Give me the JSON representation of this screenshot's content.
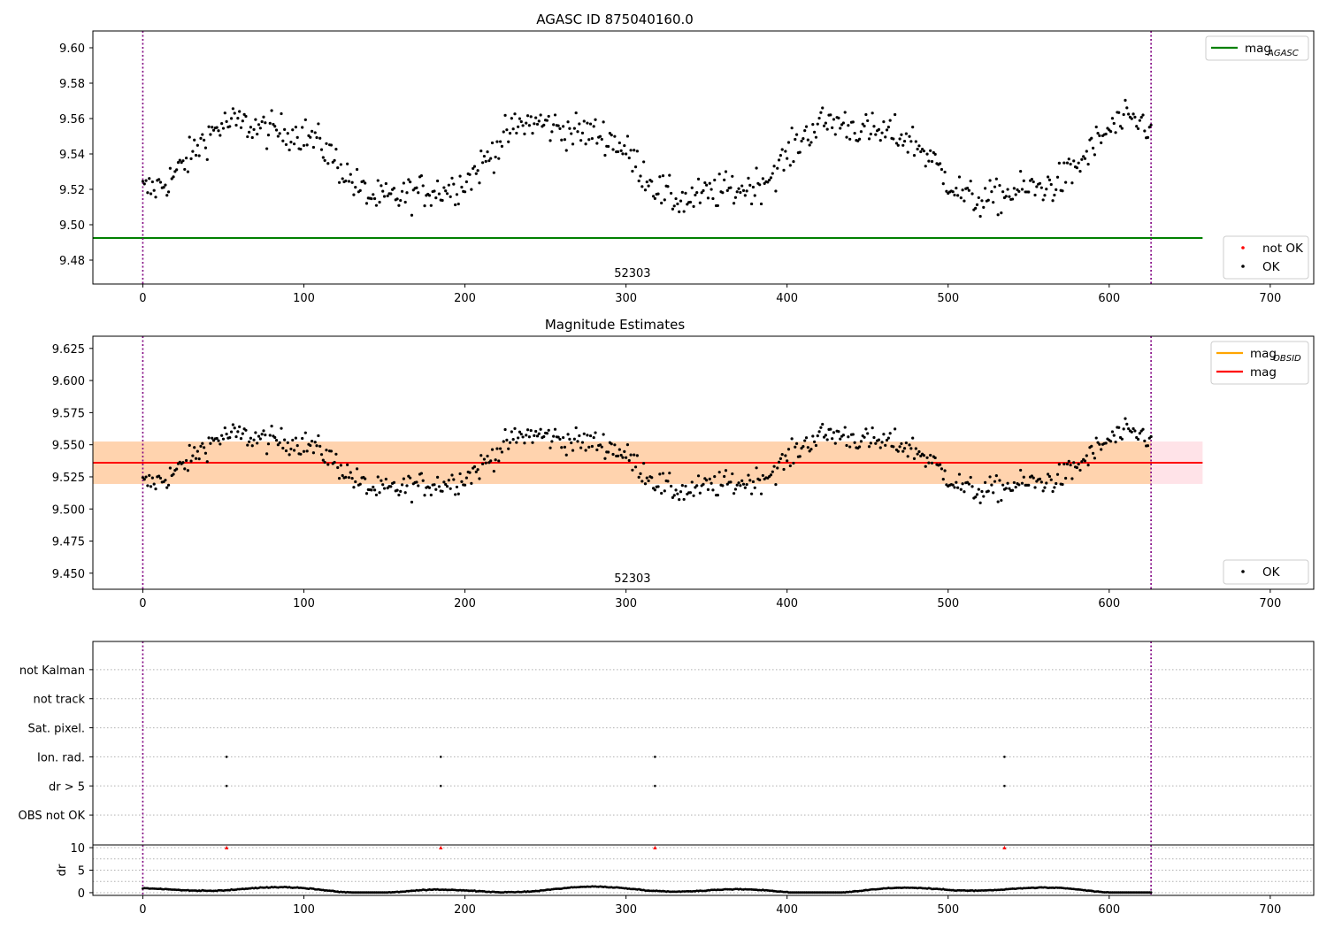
{
  "chart_data": [
    {
      "type": "scatter",
      "title": "AGASC ID 875040160.0",
      "xlim": [
        -31,
        727
      ],
      "ylim": [
        9.4665,
        9.6095
      ],
      "x_ticks": [
        0,
        100,
        200,
        300,
        400,
        500,
        600,
        700
      ],
      "y_ticks": [
        9.48,
        9.5,
        9.52,
        9.54,
        9.56,
        9.58,
        9.6
      ],
      "y_tick_decimals": 2,
      "grid": false,
      "obsid_annotation": {
        "text": "52303",
        "x": 304
      },
      "vertical_lines": [
        {
          "x": 0,
          "color": "#800080",
          "style": "dotted"
        },
        {
          "x": 626,
          "color": "#800080",
          "style": "dotted"
        }
      ],
      "hlines": [
        {
          "y": 9.4925,
          "x0": -31,
          "x1": 658,
          "color": "#008000"
        }
      ],
      "legends": [
        {
          "placement": "upper-right",
          "entries": [
            {
              "kind": "line",
              "color": "#008000",
              "label": "mag",
              "sub": "AGASC"
            }
          ]
        },
        {
          "placement": "lower-right",
          "entries": [
            {
              "kind": "dot",
              "color": "#ff0000",
              "label": "not OK"
            },
            {
              "kind": "dot",
              "color": "#000000",
              "label": "OK"
            }
          ]
        }
      ],
      "series": [
        {
          "label": "OK",
          "color": "#000000",
          "generator": "mag",
          "n": 627
        }
      ]
    },
    {
      "type": "scatter",
      "title": "Magnitude Estimates",
      "xlim": [
        -31,
        727
      ],
      "ylim": [
        9.4375,
        9.6345
      ],
      "x_ticks": [
        0,
        100,
        200,
        300,
        400,
        500,
        600,
        700
      ],
      "y_ticks": [
        9.45,
        9.475,
        9.5,
        9.525,
        9.55,
        9.575,
        9.6,
        9.625
      ],
      "y_tick_decimals": 3,
      "grid": false,
      "obsid_annotation": {
        "text": "52303",
        "x": 304
      },
      "vertical_lines": [
        {
          "x": 0,
          "color": "#800080",
          "style": "dotted"
        },
        {
          "x": 626,
          "color": "#800080",
          "style": "dotted"
        }
      ],
      "bands": [
        {
          "y0": 9.5195,
          "y1": 9.5525,
          "x0": -31,
          "x1": 658,
          "color": "#ffc0cb",
          "opacity": 0.45
        },
        {
          "y0": 9.5195,
          "y1": 9.5525,
          "x0": -31,
          "x1": 626,
          "color": "#ffa500",
          "opacity": 0.25
        }
      ],
      "hlines": [
        {
          "y": 9.536,
          "x0": -31,
          "x1": 658,
          "color": "#ff0000"
        }
      ],
      "legends": [
        {
          "placement": "upper-right",
          "entries": [
            {
              "kind": "line",
              "color": "#ffa500",
              "label": "mag",
              "sub": "OBSID"
            },
            {
              "kind": "line",
              "color": "#ff0000",
              "label": "mag"
            }
          ]
        },
        {
          "placement": "lower-right",
          "entries": [
            {
              "kind": "dot",
              "color": "#000000",
              "label": "OK"
            }
          ]
        }
      ],
      "series": [
        {
          "label": "OK",
          "color": "#000000",
          "generator": "mag",
          "n": 627
        }
      ]
    },
    {
      "type": "scatter",
      "title": "",
      "xlim": [
        -31,
        727
      ],
      "categories": [
        "OBS not OK",
        "dr > 5",
        "Ion. rad.",
        "Sat. pixel.",
        "not track",
        "not Kalman"
      ],
      "grid": true,
      "vertical_lines": [
        {
          "x": 0,
          "color": "#800080",
          "style": "dotted"
        },
        {
          "x": 626,
          "color": "#800080",
          "style": "dotted"
        }
      ],
      "flag_points": [
        {
          "category": "dr > 5",
          "x": [
            52,
            185,
            318,
            535
          ]
        },
        {
          "category": "Ion. rad.",
          "x": [
            52,
            185,
            318,
            535
          ]
        }
      ]
    },
    {
      "type": "scatter",
      "title": "",
      "ylabel": "dr",
      "xlim": [
        -31,
        727
      ],
      "ylim": [
        -0.6,
        10.6
      ],
      "x_ticks": [
        0,
        100,
        200,
        300,
        400,
        500,
        600,
        700
      ],
      "y_ticks": [
        0,
        5,
        10
      ],
      "grid": true,
      "vertical_lines": [
        {
          "x": 0,
          "color": "#800080",
          "style": "dotted"
        },
        {
          "x": 626,
          "color": "#800080",
          "style": "dotted"
        }
      ],
      "markers": [
        {
          "x": [
            52,
            185,
            318,
            535
          ],
          "y": 10,
          "color": "#ff0000",
          "shape": "triangle"
        }
      ],
      "series": [
        {
          "label": "dr",
          "color": "#000000",
          "generator": "dr",
          "n": 627
        }
      ]
    }
  ]
}
